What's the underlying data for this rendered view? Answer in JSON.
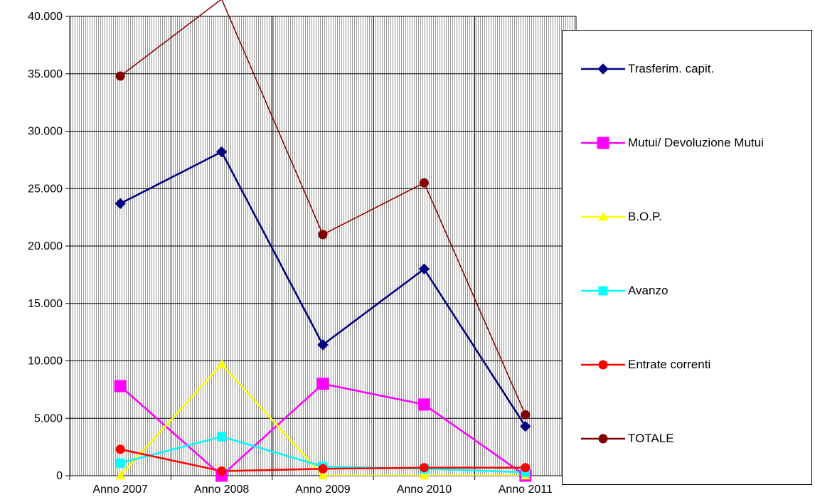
{
  "chart_data": {
    "type": "line",
    "title": "",
    "xlabel": "",
    "ylabel": "",
    "categories": [
      "Anno 2007",
      "Anno 2008",
      "Anno 2009",
      "Anno 2010",
      "Anno 2011"
    ],
    "ylim": [
      0,
      40000
    ],
    "yticks": [
      0,
      5000,
      10000,
      15000,
      20000,
      25000,
      30000,
      35000,
      40000
    ],
    "ytick_labels": [
      "0",
      "5.000",
      "10.000",
      "15.000",
      "20.000",
      "25.000",
      "30.000",
      "35.000",
      "40.000"
    ],
    "grid": "vertical hatching with major gridlines",
    "legend_position": "right",
    "series": [
      {
        "name": "Trasferim. capit.",
        "color": "#000080",
        "marker": "diamond",
        "values": [
          23700,
          28200,
          11400,
          18000,
          4300
        ]
      },
      {
        "name": "Mutui/ Devoluzione Mutui",
        "color": "#FF00FF",
        "marker": "square",
        "values": [
          7800,
          0,
          8000,
          6200,
          0
        ]
      },
      {
        "name": "B.O.P.",
        "color": "#FFFF00",
        "marker": "triangle",
        "values": [
          0,
          9700,
          0,
          0,
          0
        ]
      },
      {
        "name": "Avanzo",
        "color": "#00FFFF",
        "marker": "square",
        "values": [
          1100,
          3400,
          800,
          600,
          300
        ]
      },
      {
        "name": "Entrate correnti",
        "color": "#FF0000",
        "marker": "circle",
        "values": [
          2300,
          400,
          600,
          700,
          700
        ]
      },
      {
        "name": "TOTALE",
        "color": "#800000",
        "marker": "circle",
        "values": [
          34800,
          41500,
          21000,
          25500,
          5300
        ]
      }
    ]
  }
}
